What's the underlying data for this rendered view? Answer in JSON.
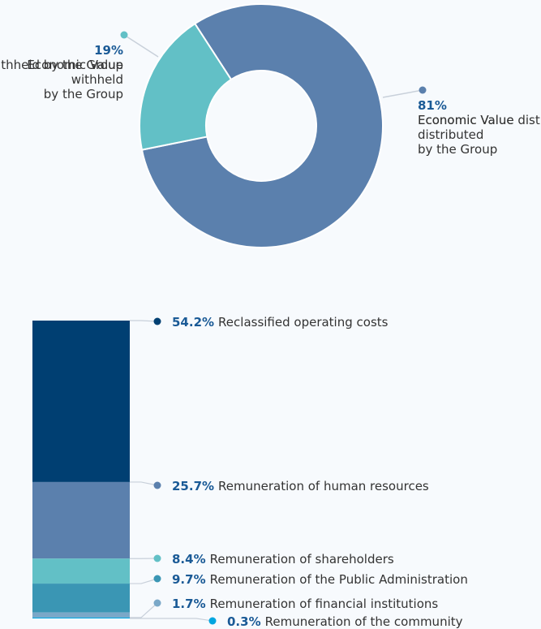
{
  "chart_data": [
    {
      "type": "donut",
      "categories": [
        "Economic Value\ndistributed\nby the Group",
        "Economic Value\nwithheld\nby the Group"
      ],
      "values": [
        81,
        19
      ],
      "value_labels": [
        "81%",
        "19%"
      ],
      "colors": [
        "#5b80ad",
        "#62c0c6"
      ]
    },
    {
      "type": "stacked-column",
      "categories": [
        "Reclassified operating costs",
        "Remuneration of human resources",
        "Remuneration of shareholders",
        "Remuneration of the Public Administration",
        "Remuneration of financial institutions",
        "Remuneration of the community"
      ],
      "values": [
        54.2,
        25.7,
        8.4,
        9.7,
        1.7,
        0.3
      ],
      "value_labels": [
        "54.2%",
        "25.7%",
        "8.4%",
        "9.7%",
        "1.7%",
        "0.3%"
      ],
      "colors": [
        "#003f72",
        "#5b80ad",
        "#62c0c6",
        "#3a96b4",
        "#7aa8c8",
        "#00a6e0"
      ],
      "ylim": [
        0,
        100
      ]
    }
  ]
}
